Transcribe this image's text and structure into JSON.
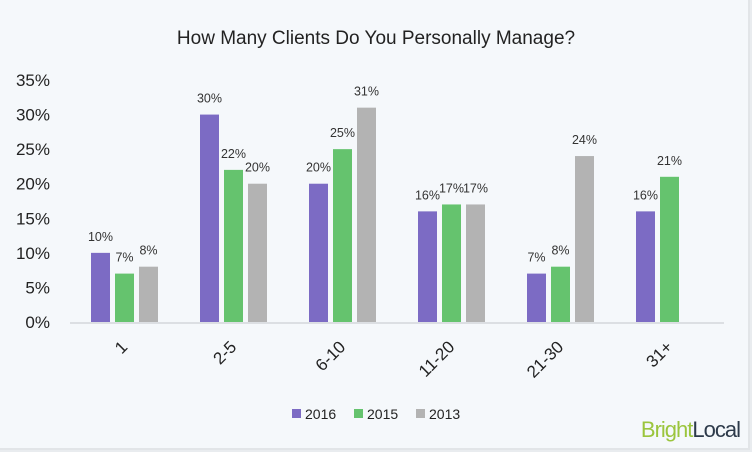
{
  "chart_data": {
    "type": "bar",
    "title": "How Many Clients Do You Personally Manage?",
    "categories": [
      "1",
      "2-5",
      "6-10",
      "11-20",
      "21-30",
      "31+"
    ],
    "series": [
      {
        "name": "2016",
        "color": "#7c6bc4",
        "values": [
          10,
          30,
          20,
          16,
          7,
          16
        ]
      },
      {
        "name": "2015",
        "color": "#65c36e",
        "values": [
          7,
          22,
          25,
          17,
          8,
          21
        ]
      },
      {
        "name": "2013",
        "color": "#b3b3b3",
        "values": [
          8,
          20,
          31,
          17,
          24,
          null
        ]
      }
    ],
    "ylim": [
      0,
      35
    ],
    "yticks": [
      "0%",
      "5%",
      "10%",
      "15%",
      "20%",
      "25%",
      "30%",
      "35%"
    ],
    "grid": false,
    "legend": "bottom",
    "value_suffix": "%"
  },
  "logo": {
    "part1": "Bright",
    "part2": "Local",
    "color1": "#9bc53d",
    "color2": "#2d3a4a"
  }
}
